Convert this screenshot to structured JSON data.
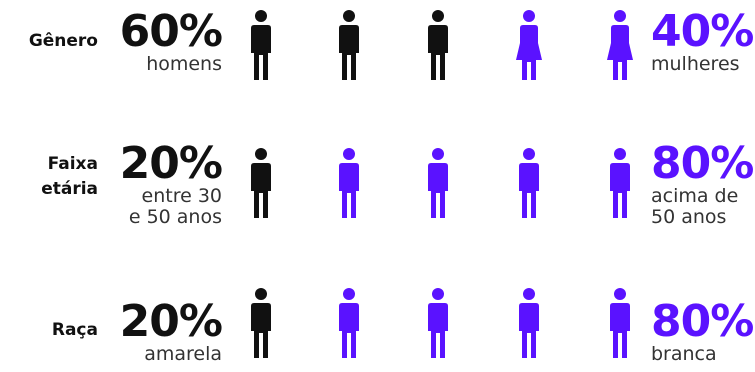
{
  "colors": {
    "dark": "#111111",
    "accent": "#5a12ff"
  },
  "rows": [
    {
      "category_lines": [
        "Gênero"
      ],
      "left": {
        "percent": "60%",
        "desc_lines": [
          "homens"
        ]
      },
      "right": {
        "percent": "40%",
        "desc_lines": [
          "mulheres"
        ]
      },
      "figures": [
        {
          "shape": "male",
          "color": "dark"
        },
        {
          "shape": "male",
          "color": "dark"
        },
        {
          "shape": "male",
          "color": "dark"
        },
        {
          "shape": "female",
          "color": "accent"
        },
        {
          "shape": "female",
          "color": "accent"
        }
      ]
    },
    {
      "category_lines": [
        "Faixa",
        "etária"
      ],
      "left": {
        "percent": "20%",
        "desc_lines": [
          "entre 30",
          "e 50 anos"
        ]
      },
      "right": {
        "percent": "80%",
        "desc_lines": [
          "acima de",
          "50 anos"
        ]
      },
      "figures": [
        {
          "shape": "male",
          "color": "dark"
        },
        {
          "shape": "male",
          "color": "accent"
        },
        {
          "shape": "male",
          "color": "accent"
        },
        {
          "shape": "male",
          "color": "accent"
        },
        {
          "shape": "male",
          "color": "accent"
        }
      ]
    },
    {
      "category_lines": [
        "Raça"
      ],
      "left": {
        "percent": "20%",
        "desc_lines": [
          "amarela"
        ]
      },
      "right": {
        "percent": "80%",
        "desc_lines": [
          "branca"
        ]
      },
      "figures": [
        {
          "shape": "male",
          "color": "dark"
        },
        {
          "shape": "male",
          "color": "accent"
        },
        {
          "shape": "male",
          "color": "accent"
        },
        {
          "shape": "male",
          "color": "accent"
        },
        {
          "shape": "male",
          "color": "accent"
        }
      ]
    }
  ]
}
